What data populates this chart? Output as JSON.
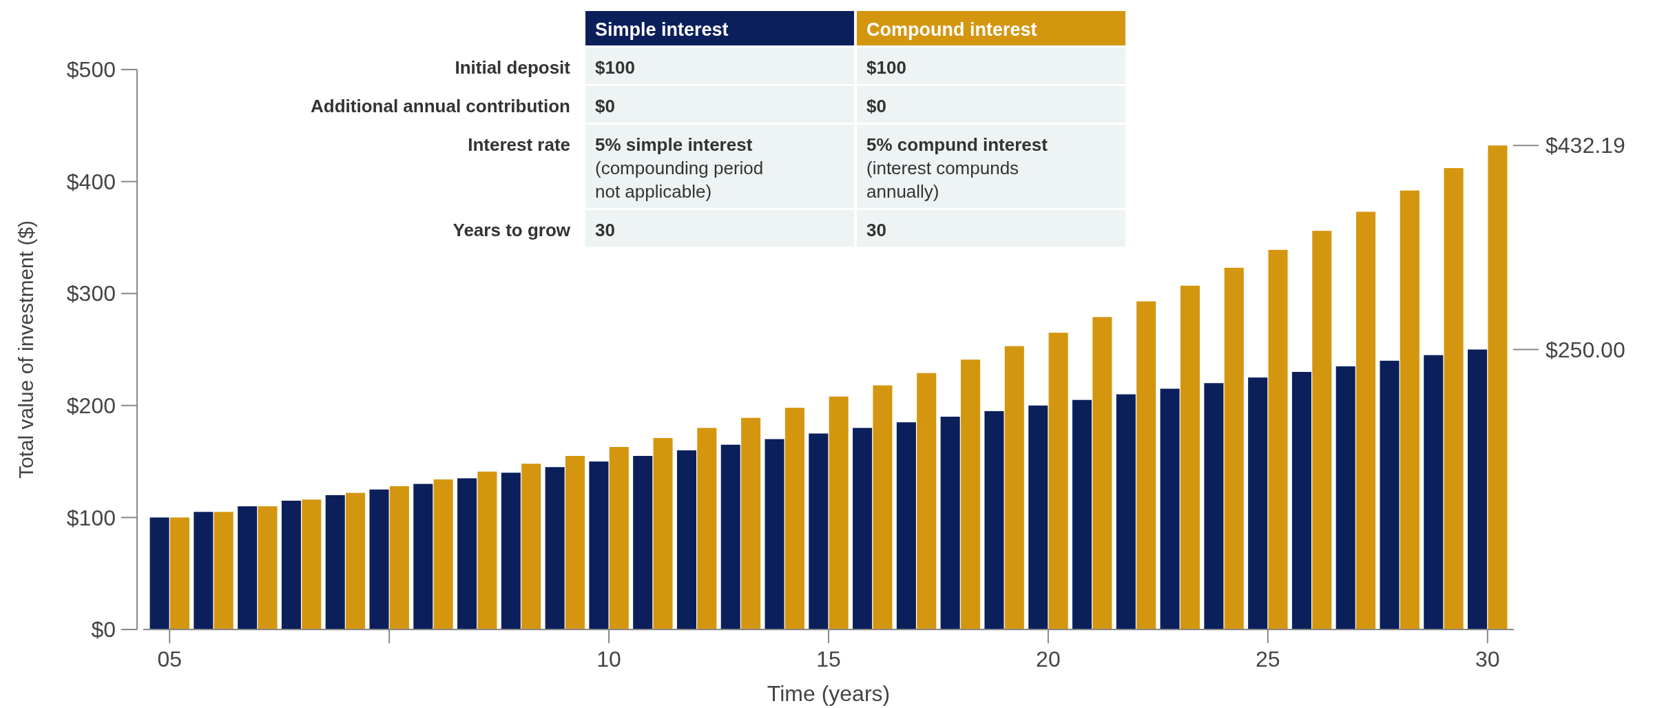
{
  "chart_data": {
    "type": "bar",
    "xlabel": "Time (years)",
    "ylabel": "Total value of investment ($)",
    "categories": [
      "05",
      null,
      null,
      null,
      null,
      null,
      null,
      null,
      null,
      null,
      "10",
      null,
      null,
      null,
      null,
      "15",
      null,
      null,
      null,
      null,
      "20",
      null,
      null,
      null,
      null,
      "25",
      null,
      null,
      null,
      null,
      "30"
    ],
    "series": [
      {
        "name": "Simple interest",
        "color": "#0b1f5b",
        "values": [
          100,
          105,
          110,
          115,
          120,
          125,
          130,
          135,
          140,
          145,
          150,
          155,
          160,
          165,
          170,
          175,
          180,
          185,
          190,
          195,
          200,
          205,
          210,
          215,
          220,
          225,
          230,
          235,
          240,
          245,
          250
        ]
      },
      {
        "name": "Compound interest",
        "color": "#d4960f",
        "values": [
          100,
          105,
          110,
          116,
          122,
          128,
          134,
          141,
          148,
          155,
          163,
          171,
          180,
          189,
          198,
          208,
          218,
          229,
          241,
          253,
          265,
          279,
          293,
          307,
          323,
          339,
          356,
          373,
          392,
          412,
          432.19
        ]
      }
    ],
    "ylim": [
      0,
      500
    ],
    "yticks": [
      {
        "value": 0,
        "label": "$0"
      },
      {
        "value": 100,
        "label": "$100"
      },
      {
        "value": 200,
        "label": "$200"
      },
      {
        "value": 300,
        "label": "$300"
      },
      {
        "value": 400,
        "label": "$400"
      },
      {
        "value": 500,
        "label": "$500"
      }
    ],
    "grid": false,
    "legend": "top",
    "annotations": [
      "Initial deposit",
      "$100",
      "$100",
      "Additional annual contribution",
      "$0",
      "$0",
      "Interest rate",
      "5% simple interest\n(compounding period\nnot applicable)",
      "5% compund interest\n(interest compunds\nannually)",
      "Years to grow",
      "30",
      "30",
      {
        "text": "$432.19",
        "x": "30",
        "y": 432.19
      },
      {
        "text": "$250.00",
        "x": "30",
        "y": 250
      }
    ]
  }
}
